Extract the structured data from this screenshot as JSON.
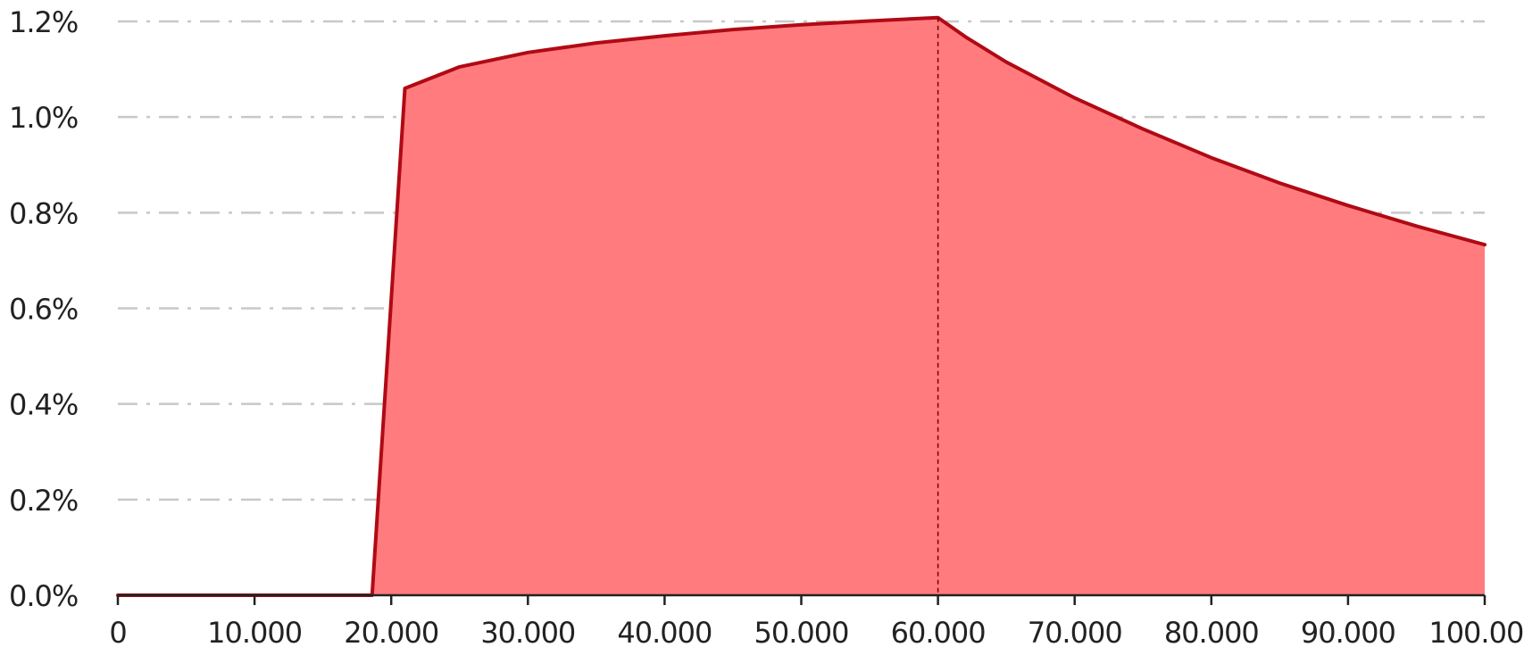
{
  "chart_data": {
    "type": "area",
    "title": "",
    "xlabel": "",
    "ylabel": "",
    "xlim": [
      0,
      100000
    ],
    "ylim": [
      0,
      1.2
    ],
    "grid": true,
    "legend": "none",
    "x_ticks": [
      {
        "value": 0,
        "label": "0"
      },
      {
        "value": 10000,
        "label": "10.000"
      },
      {
        "value": 20000,
        "label": "20.000"
      },
      {
        "value": 30000,
        "label": "30.000"
      },
      {
        "value": 40000,
        "label": "40.000"
      },
      {
        "value": 50000,
        "label": "50.000"
      },
      {
        "value": 60000,
        "label": "60.000"
      },
      {
        "value": 70000,
        "label": "70.000"
      },
      {
        "value": 80000,
        "label": "80.000"
      },
      {
        "value": 90000,
        "label": "90.000"
      },
      {
        "value": 100000,
        "label": "100.000"
      }
    ],
    "y_ticks": [
      {
        "value": 0.0,
        "label": "0.0%"
      },
      {
        "value": 0.2,
        "label": "0.2%"
      },
      {
        "value": 0.4,
        "label": "0.4%"
      },
      {
        "value": 0.6,
        "label": "0.6%"
      },
      {
        "value": 0.8,
        "label": "0.8%"
      },
      {
        "value": 1.0,
        "label": "1.0%"
      },
      {
        "value": 1.2,
        "label": "1.2%"
      }
    ],
    "series": [
      {
        "x": [
          0,
          18600,
          21000,
          25000,
          30000,
          35000,
          40000,
          45000,
          50000,
          55000,
          60000,
          62000,
          65000,
          70000,
          75000,
          80000,
          85000,
          90000,
          95000,
          100000
        ],
        "y": [
          0.0,
          0.0,
          1.06,
          1.105,
          1.135,
          1.155,
          1.17,
          1.183,
          1.193,
          1.201,
          1.208,
          1.168,
          1.115,
          1.04,
          0.975,
          0.915,
          0.862,
          0.815,
          0.772,
          0.733
        ]
      }
    ],
    "reference_line_x": 60000,
    "colors": {
      "fill": "#ff7b7e",
      "line": "#b00a14",
      "grid": "#c8c8c8",
      "reference": "#7a0000"
    }
  }
}
